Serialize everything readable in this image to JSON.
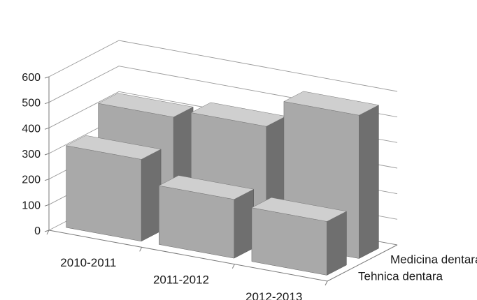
{
  "chart_data": {
    "type": "bar",
    "subtype": "3d-clustered",
    "title": "",
    "xlabel": "",
    "ylabel": "",
    "ylim": [
      0,
      600
    ],
    "yticks": [
      0,
      100,
      200,
      300,
      400,
      500,
      600
    ],
    "grid": true,
    "categories": [
      "2010-2011",
      "2011-2012",
      "2012-2013"
    ],
    "series": [
      {
        "name": "Medicina dentara",
        "values": [
          420,
          450,
          560
        ]
      },
      {
        "name": "Tehnica dentara",
        "values": [
          320,
          230,
          210
        ]
      }
    ],
    "colors": {
      "bar_front": "#a9a9a9",
      "bar_top": "#cfcfcf",
      "bar_side": "#6f6f6f",
      "grid": "#9a9a9a",
      "axis": "#7a7a7a"
    }
  }
}
